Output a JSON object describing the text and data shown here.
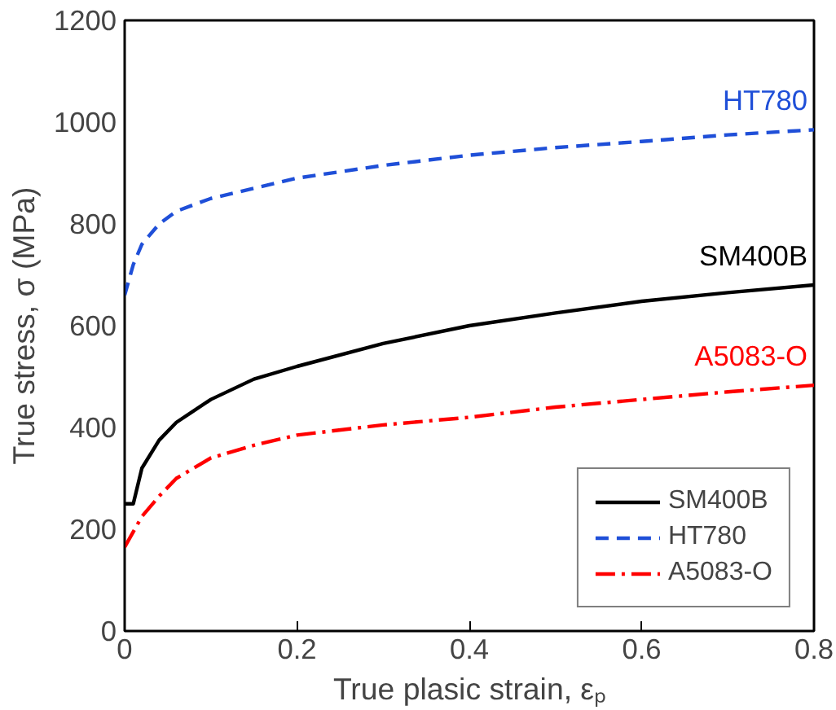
{
  "chart_data": {
    "type": "line",
    "xlabel": "True plasic strain, εₚ",
    "ylabel": "True stress, σ (MPa)",
    "xlim": [
      0,
      0.8
    ],
    "ylim": [
      0,
      1200
    ],
    "xticks": [
      0,
      0.2,
      0.4,
      0.6,
      0.8
    ],
    "yticks": [
      0,
      200,
      400,
      600,
      800,
      1000,
      1200
    ],
    "grid": false,
    "legend": "bottom right",
    "marker": "none",
    "series": [
      {
        "name": "SM400B",
        "color": "#000000",
        "line_style": "solid",
        "x": [
          0,
          0.01,
          0.02,
          0.04,
          0.06,
          0.1,
          0.15,
          0.2,
          0.3,
          0.4,
          0.5,
          0.6,
          0.7,
          0.8
        ],
        "values": [
          250,
          250,
          320,
          375,
          410,
          455,
          495,
          520,
          565,
          600,
          625,
          648,
          665,
          680
        ]
      },
      {
        "name": "HT780",
        "color": "#1f4fd8",
        "line_style": "dashed",
        "x": [
          0,
          0.01,
          0.02,
          0.04,
          0.06,
          0.1,
          0.2,
          0.3,
          0.4,
          0.5,
          0.6,
          0.7,
          0.8
        ],
        "values": [
          660,
          720,
          760,
          800,
          825,
          850,
          890,
          915,
          935,
          950,
          962,
          975,
          985
        ]
      },
      {
        "name": "A5083-O",
        "color": "#ff0000",
        "line_style": "dashdot",
        "x": [
          0,
          0.01,
          0.02,
          0.04,
          0.06,
          0.1,
          0.15,
          0.2,
          0.3,
          0.4,
          0.5,
          0.6,
          0.7,
          0.8
        ],
        "values": [
          165,
          195,
          225,
          265,
          300,
          340,
          365,
          385,
          405,
          420,
          440,
          455,
          470,
          483
        ]
      }
    ],
    "annotations": [
      "SM400B",
      "HT780",
      "A5083-O"
    ]
  }
}
